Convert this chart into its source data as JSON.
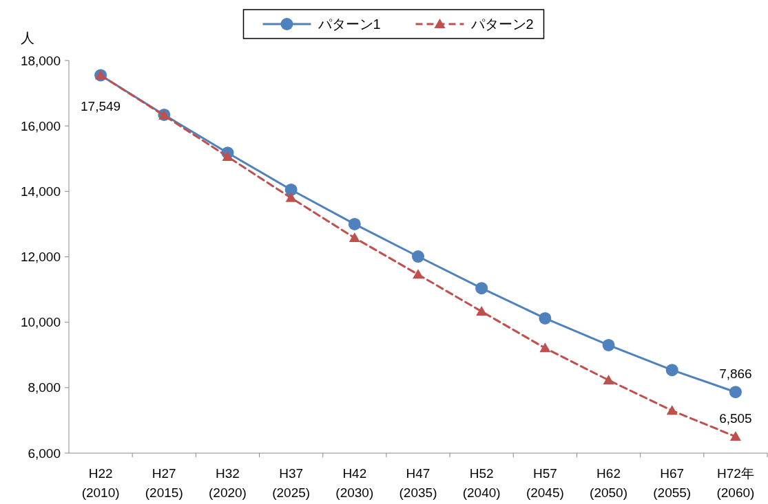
{
  "chart_data": {
    "type": "line",
    "ylabel": "人",
    "categories": [
      "H22\n(2010)",
      "H27\n(2015)",
      "H32\n(2020)",
      "H37\n(2025)",
      "H42\n(2030)",
      "H47\n(2035)",
      "H52\n(2040)",
      "H57\n(2045)",
      "H62\n(2050)",
      "H67\n(2055)",
      "H72年\n(2060)"
    ],
    "series": [
      {
        "name": "パターン1",
        "color": "#4f81bd",
        "marker": "circle",
        "line_style": "solid",
        "values": [
          17549,
          16340,
          15180,
          14050,
          13000,
          12010,
          11040,
          10120,
          9300,
          8540,
          7866
        ],
        "value_labels": [
          "17,549",
          null,
          null,
          null,
          null,
          null,
          null,
          null,
          null,
          null,
          "7,866"
        ]
      },
      {
        "name": "パターン2",
        "color": "#c0504d",
        "marker": "triangle",
        "line_style": "dashed",
        "values": [
          17550,
          16320,
          15060,
          13800,
          12580,
          11460,
          10330,
          9210,
          8230,
          7300,
          6505
        ],
        "value_labels": [
          null,
          null,
          null,
          null,
          null,
          null,
          null,
          null,
          null,
          null,
          "6,505"
        ]
      }
    ],
    "ylim": [
      6000,
      18000
    ],
    "yticks": [
      {
        "value": 6000,
        "label": "6,000"
      },
      {
        "value": 8000,
        "label": "8,000"
      },
      {
        "value": 10000,
        "label": "10,000"
      },
      {
        "value": 12000,
        "label": "12,000"
      },
      {
        "value": 14000,
        "label": "14,000"
      },
      {
        "value": 16000,
        "label": "16,000"
      },
      {
        "value": 18000,
        "label": "18,000"
      }
    ],
    "grid": false,
    "legend": "top"
  }
}
